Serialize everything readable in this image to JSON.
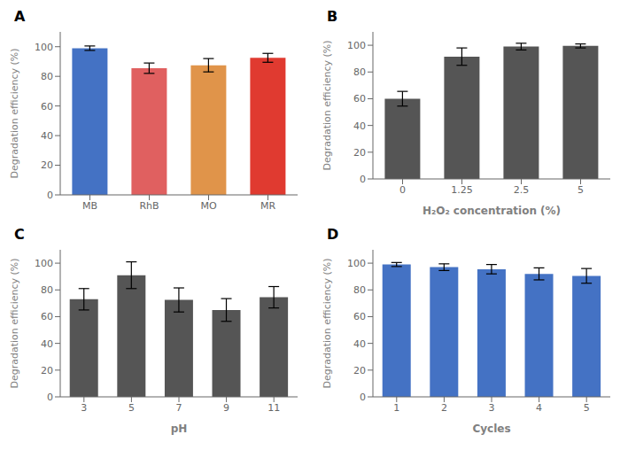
{
  "chart_data": [
    {
      "type": "bar",
      "title": "A",
      "categories": [
        "MB",
        "RhB",
        "MO",
        "MR"
      ],
      "values": [
        99,
        85.5,
        87.5,
        92.5
      ],
      "errors": [
        1.5,
        3.5,
        4.5,
        3.0
      ],
      "colors": [
        "#4472C4",
        "#E06060",
        "#E0944A",
        "#E03A30"
      ],
      "ylabel": "Degradation efficiency (%)",
      "ylim": [
        0,
        110
      ],
      "yticks": [
        0,
        20,
        40,
        60,
        80,
        100
      ]
    },
    {
      "type": "bar",
      "title": "B",
      "categories": [
        "0",
        "1.25",
        "2.5",
        "5"
      ],
      "values": [
        60,
        91.5,
        99,
        99.5
      ],
      "errors": [
        5.5,
        6.5,
        2.5,
        1.5
      ],
      "colors": [
        "#555555",
        "#555555",
        "#555555",
        "#555555"
      ],
      "ylabel": "Degradation efficiency (%)",
      "xlabel": "H₂O₂ concentration (%)",
      "ylim": [
        0,
        110
      ],
      "yticks": [
        0,
        20,
        40,
        60,
        80,
        100
      ]
    },
    {
      "type": "bar",
      "title": "C",
      "categories": [
        "3",
        "5",
        "7",
        "9",
        "11"
      ],
      "values": [
        73,
        91,
        72.5,
        65,
        74.5
      ],
      "errors": [
        8,
        10,
        9,
        8.5,
        8
      ],
      "colors": [
        "#555555",
        "#555555",
        "#555555",
        "#555555",
        "#555555"
      ],
      "ylabel": "Degradation efficiency (%)",
      "xlabel": "pH",
      "ylim": [
        0,
        110
      ],
      "yticks": [
        0,
        20,
        40,
        60,
        80,
        100
      ]
    },
    {
      "type": "bar",
      "title": "D",
      "categories": [
        "1",
        "2",
        "3",
        "4",
        "5"
      ],
      "values": [
        99,
        97,
        95.5,
        92,
        90.5
      ],
      "errors": [
        1.5,
        2.5,
        3.5,
        4.5,
        5.5
      ],
      "colors": [
        "#4472C4",
        "#4472C4",
        "#4472C4",
        "#4472C4",
        "#4472C4"
      ],
      "ylabel": "Degradation efficiency (%)",
      "xlabel": "Cycles",
      "ylim": [
        0,
        110
      ],
      "yticks": [
        0,
        20,
        40,
        60,
        80,
        100
      ]
    }
  ]
}
